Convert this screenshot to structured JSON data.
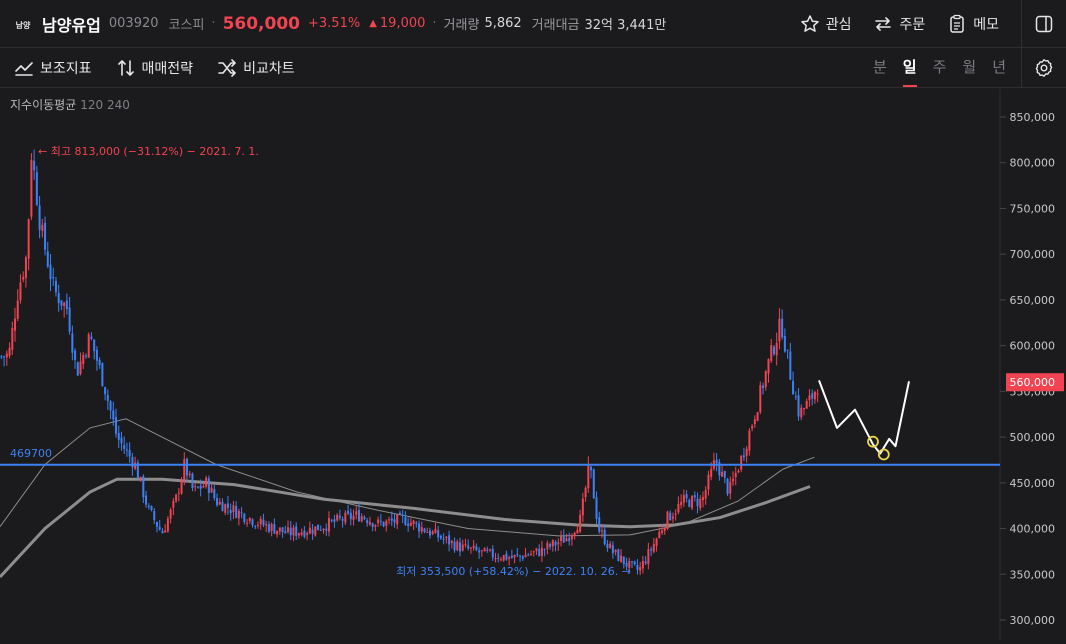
{
  "header": {
    "logo_text": "남양",
    "stock_name": "남양유업",
    "code": "003920",
    "market": "코스피",
    "price": "560,000",
    "change_pct": "+3.51%",
    "change_abs": "19,000",
    "volume_label": "거래량",
    "volume_value": "5,862",
    "amount_label": "거래대금",
    "amount_value": "32억 3,441만",
    "actions": {
      "favorite": "관심",
      "order": "주문",
      "memo": "메모"
    }
  },
  "toolbar": {
    "indicator": "보조지표",
    "strategy": "매매전략",
    "compare": "비교차트",
    "periods": [
      "분",
      "일",
      "주",
      "월",
      "년"
    ],
    "active_period": "일"
  },
  "legend": {
    "ma_label": "지수이동평균",
    "ma_values": "120 240"
  },
  "chart_data": {
    "type": "candlestick",
    "y_axis": {
      "min": 290000,
      "max": 865000,
      "ticks": [
        300000,
        350000,
        400000,
        450000,
        500000,
        550000,
        600000,
        650000,
        700000,
        750000,
        800000,
        850000
      ],
      "tick_labels": [
        "300,000",
        "350,000",
        "400,000",
        "450,000",
        "500,000",
        "550,000",
        "600,000",
        "650,000",
        "700,000",
        "750,000",
        "800,000",
        "850,000"
      ]
    },
    "current_price": 560000,
    "current_price_label": "560,000",
    "horizontal_line": {
      "value": 469700,
      "label": "469700",
      "color": "#3d82f5"
    },
    "high_annotation": "← 최고 813,000 (−31.12%) − 2021. 7. 1.",
    "low_annotation": "최저 353,500 (+58.42%) − 2022. 10. 26. →",
    "price_path": [
      [
        0,
        588000
      ],
      [
        0.01,
        590000
      ],
      [
        0.02,
        660000
      ],
      [
        0.03,
        700000
      ],
      [
        0.035,
        813000
      ],
      [
        0.045,
        730000
      ],
      [
        0.06,
        660000
      ],
      [
        0.075,
        640000
      ],
      [
        0.085,
        570000
      ],
      [
        0.1,
        610000
      ],
      [
        0.115,
        560000
      ],
      [
        0.13,
        500000
      ],
      [
        0.15,
        470000
      ],
      [
        0.165,
        420000
      ],
      [
        0.18,
        395000
      ],
      [
        0.195,
        430000
      ],
      [
        0.205,
        470000
      ],
      [
        0.215,
        440000
      ],
      [
        0.23,
        450000
      ],
      [
        0.24,
        430000
      ],
      [
        0.26,
        420000
      ],
      [
        0.29,
        405000
      ],
      [
        0.32,
        395000
      ],
      [
        0.35,
        400000
      ],
      [
        0.38,
        410000
      ],
      [
        0.4,
        415000
      ],
      [
        0.42,
        405000
      ],
      [
        0.45,
        410000
      ],
      [
        0.48,
        395000
      ],
      [
        0.51,
        380000
      ],
      [
        0.54,
        372000
      ],
      [
        0.57,
        368000
      ],
      [
        0.6,
        375000
      ],
      [
        0.63,
        390000
      ],
      [
        0.645,
        410000
      ],
      [
        0.655,
        470000
      ],
      [
        0.665,
        400000
      ],
      [
        0.68,
        375000
      ],
      [
        0.7,
        358000
      ],
      [
        0.71,
        354000
      ],
      [
        0.725,
        380000
      ],
      [
        0.74,
        410000
      ],
      [
        0.76,
        430000
      ],
      [
        0.78,
        430000
      ],
      [
        0.795,
        475000
      ],
      [
        0.81,
        440000
      ],
      [
        0.825,
        480000
      ],
      [
        0.84,
        530000
      ],
      [
        0.855,
        585000
      ],
      [
        0.868,
        625000
      ],
      [
        0.878,
        570000
      ],
      [
        0.888,
        525000
      ],
      [
        0.9,
        540000
      ],
      [
        0.91,
        560000
      ]
    ],
    "ema120_path": [
      [
        0,
        402000
      ],
      [
        0.05,
        470000
      ],
      [
        0.1,
        510000
      ],
      [
        0.14,
        520000
      ],
      [
        0.18,
        500000
      ],
      [
        0.24,
        470000
      ],
      [
        0.33,
        440000
      ],
      [
        0.42,
        420000
      ],
      [
        0.52,
        400000
      ],
      [
        0.62,
        392000
      ],
      [
        0.7,
        393000
      ],
      [
        0.76,
        405000
      ],
      [
        0.82,
        430000
      ],
      [
        0.87,
        465000
      ],
      [
        0.905,
        478000
      ]
    ],
    "ema240_path": [
      [
        0,
        347000
      ],
      [
        0.05,
        400000
      ],
      [
        0.1,
        440000
      ],
      [
        0.13,
        454000
      ],
      [
        0.18,
        454000
      ],
      [
        0.26,
        448000
      ],
      [
        0.36,
        432000
      ],
      [
        0.46,
        422000
      ],
      [
        0.56,
        410000
      ],
      [
        0.64,
        404000
      ],
      [
        0.7,
        402000
      ],
      [
        0.75,
        404000
      ],
      [
        0.8,
        412000
      ],
      [
        0.85,
        428000
      ],
      [
        0.9,
        446000
      ]
    ],
    "projection_path": [
      [
        0.91,
        562000
      ],
      [
        0.93,
        510000
      ],
      [
        0.95,
        530000
      ],
      [
        0.97,
        492000
      ],
      [
        0.978,
        482000
      ],
      [
        0.988,
        498000
      ],
      [
        0.995,
        490000
      ],
      [
        1.01,
        561000
      ]
    ],
    "projection_markers": [
      [
        0.97,
        495000
      ],
      [
        0.982,
        481000
      ]
    ]
  }
}
